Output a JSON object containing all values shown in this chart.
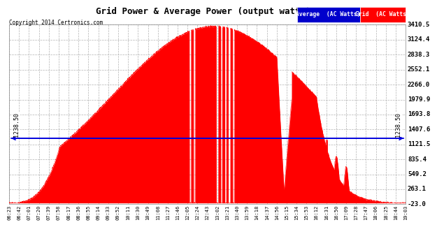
{
  "title": "Grid Power & Average Power (output watts)  Sun Sep 7 19:16",
  "copyright": "Copyright 2014 Certronics.com",
  "legend_avg": "Average  (AC Watts)",
  "legend_grid": "Grid  (AC Watts)",
  "avg_line_y": 1238.5,
  "avg_label": "1238.50",
  "y_ticks": [
    3410.5,
    3124.4,
    2838.3,
    2552.1,
    2266.0,
    1979.9,
    1693.8,
    1407.6,
    1121.5,
    835.4,
    549.2,
    263.1,
    -23.0
  ],
  "ylim_min": -23.0,
  "ylim_max": 3410.5,
  "fill_color": "#FF0000",
  "avg_line_color": "#0000DD",
  "grid_color": "#AAAAAA",
  "time_labels": [
    "06:23",
    "06:42",
    "07:01",
    "07:20",
    "07:39",
    "07:58",
    "08:17",
    "08:36",
    "08:55",
    "09:14",
    "09:33",
    "09:52",
    "10:11",
    "10:30",
    "10:49",
    "11:08",
    "11:27",
    "11:46",
    "12:05",
    "12:24",
    "12:43",
    "13:02",
    "13:21",
    "13:40",
    "13:59",
    "14:18",
    "14:37",
    "14:56",
    "15:15",
    "15:34",
    "15:53",
    "16:12",
    "16:31",
    "16:50",
    "17:09",
    "17:28",
    "17:47",
    "18:06",
    "18:25",
    "18:44",
    "19:03"
  ],
  "fig_bg": "#FFFFFF",
  "plot_bg": "#FFFFFF",
  "legend_avg_color": "#0000CC",
  "legend_grid_color": "#FF0000"
}
